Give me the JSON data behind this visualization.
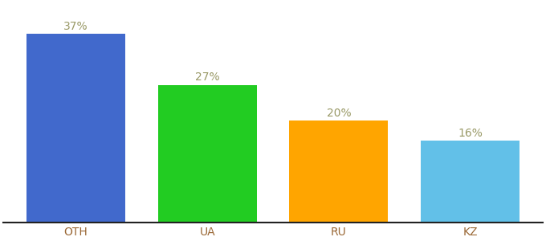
{
  "categories": [
    "OTH",
    "UA",
    "RU",
    "KZ"
  ],
  "values": [
    37,
    27,
    20,
    16
  ],
  "bar_colors": [
    "#4169CC",
    "#22CC22",
    "#FFA500",
    "#62C0E8"
  ],
  "value_labels": [
    "37%",
    "27%",
    "20%",
    "16%"
  ],
  "ylim": [
    0,
    43
  ],
  "background_color": "#ffffff",
  "label_color": "#999966",
  "label_fontsize": 10,
  "tick_fontsize": 10,
  "tick_color": "#996633",
  "bar_width": 0.75
}
